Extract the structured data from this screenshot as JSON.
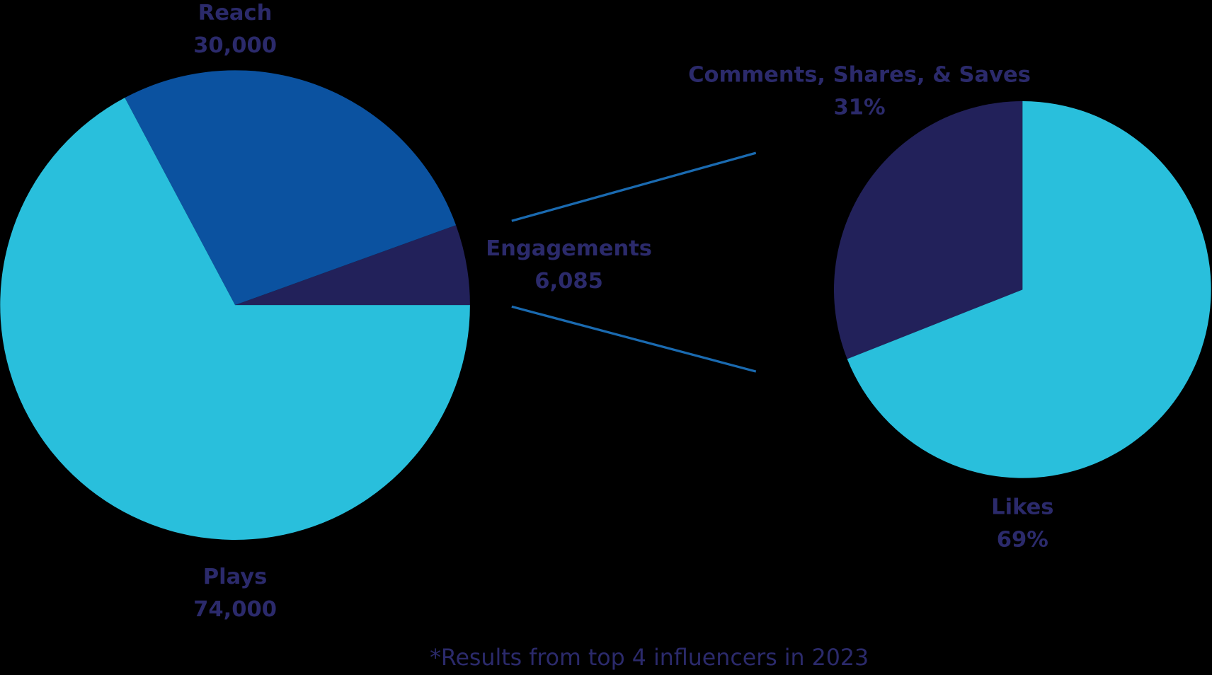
{
  "chart_data": [
    {
      "type": "pie",
      "categories": [
        "Engagements",
        "Reach",
        "Plays"
      ],
      "values": [
        6085,
        30000,
        74000
      ],
      "value_labels": [
        "6,085",
        "30,000",
        "74,000"
      ],
      "colors": [
        "#22215a",
        "#0b52a0",
        "#29bfdc"
      ]
    },
    {
      "type": "pie",
      "categories": [
        "Comments, Shares, & Saves",
        "Likes"
      ],
      "values": [
        31,
        69
      ],
      "value_labels": [
        "31%",
        "69%"
      ],
      "colors": [
        "#22215a",
        "#29bfdc"
      ]
    }
  ],
  "footnote": "*Results from top 4 influencers in 2023"
}
